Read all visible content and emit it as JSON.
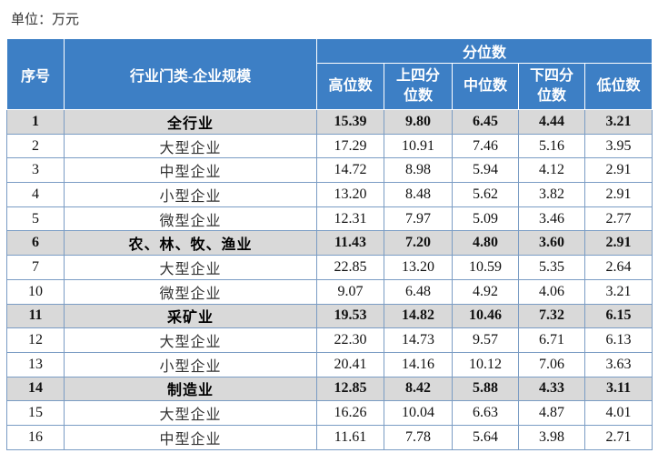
{
  "unit_label": "单位：万元",
  "table": {
    "header": {
      "index": "序号",
      "category": "行业门类-企业规模",
      "group": "分位数",
      "columns": [
        "高位数",
        "上四分位数",
        "中位数",
        "下四分位数",
        "低位数"
      ]
    },
    "rows": [
      [
        "1",
        "全行业",
        "15.39",
        "9.80",
        "6.45",
        "4.44",
        "3.21"
      ],
      [
        "2",
        "大型企业",
        "17.29",
        "10.91",
        "7.46",
        "5.16",
        "3.95"
      ],
      [
        "3",
        "中型企业",
        "14.72",
        "8.98",
        "5.94",
        "4.12",
        "2.91"
      ],
      [
        "4",
        "小型企业",
        "13.20",
        "8.48",
        "5.62",
        "3.82",
        "2.91"
      ],
      [
        "5",
        "微型企业",
        "12.31",
        "7.97",
        "5.09",
        "3.46",
        "2.77"
      ],
      [
        "6",
        "农、林、牧、渔业",
        "11.43",
        "7.20",
        "4.80",
        "3.60",
        "2.91"
      ],
      [
        "7",
        "大型企业",
        "22.85",
        "13.20",
        "10.59",
        "5.35",
        "2.64"
      ],
      [
        "10",
        "微型企业",
        "9.07",
        "6.48",
        "4.92",
        "4.06",
        "3.21"
      ],
      [
        "11",
        "采矿业",
        "19.53",
        "14.82",
        "10.46",
        "7.32",
        "6.15"
      ],
      [
        "12",
        "大型企业",
        "22.30",
        "14.73",
        "9.57",
        "6.71",
        "6.13"
      ],
      [
        "13",
        "小型企业",
        "20.41",
        "14.16",
        "10.12",
        "7.06",
        "3.63"
      ],
      [
        "14",
        "制造业",
        "12.85",
        "8.42",
        "5.88",
        "4.33",
        "3.11"
      ],
      [
        "15",
        "大型企业",
        "16.26",
        "10.04",
        "6.63",
        "4.87",
        "4.01"
      ],
      [
        "16",
        "中型企业",
        "11.61",
        "7.78",
        "5.64",
        "3.98",
        "2.71"
      ]
    ],
    "summary_rows": [
      0,
      5,
      8,
      11
    ]
  }
}
